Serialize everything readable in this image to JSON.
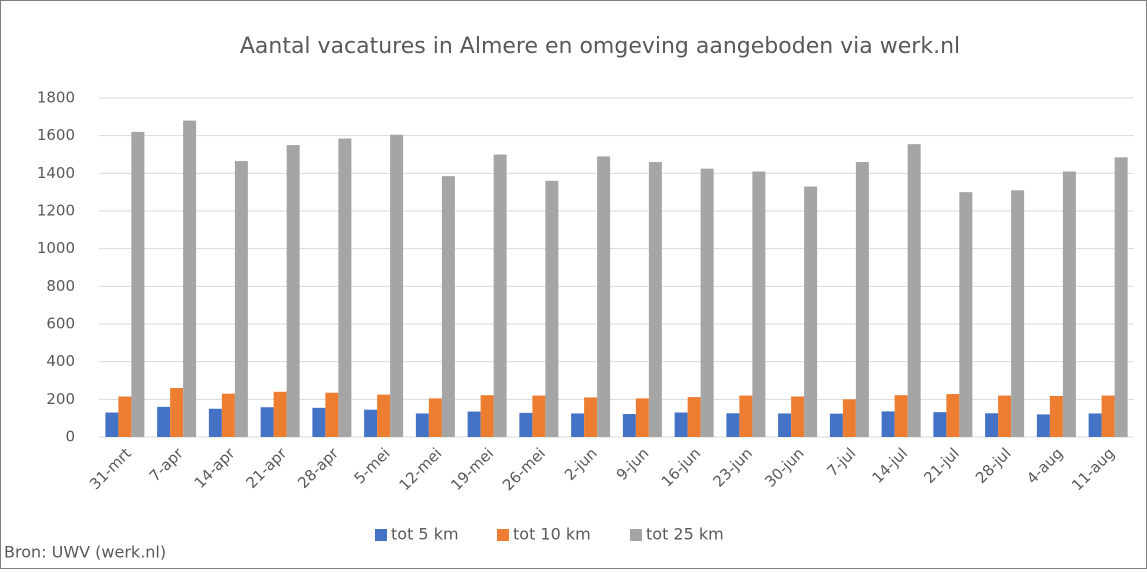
{
  "chart_data": {
    "type": "bar",
    "title": "Aantal vacatures in Almere en omgeving aangeboden via werk.nl",
    "categories": [
      "31-mrt",
      "7-apr",
      "14-apr",
      "21-apr",
      "28-apr",
      "5-mei",
      "12-mei",
      "19-mei",
      "26-mei",
      "2-jun",
      "9-jun",
      "16-jun",
      "23-jun",
      "30-jun",
      "7-jul",
      "14-jul",
      "21-jul",
      "28-jul",
      "4-aug",
      "11-aug"
    ],
    "series": [
      {
        "name": "tot 5 km",
        "color": "#4472c4",
        "values": [
          130,
          160,
          150,
          158,
          155,
          145,
          125,
          135,
          128,
          125,
          122,
          130,
          126,
          125,
          124,
          136,
          132,
          126,
          120,
          125
        ]
      },
      {
        "name": "tot 10 km",
        "color": "#ed7d31",
        "values": [
          215,
          260,
          230,
          240,
          235,
          225,
          205,
          222,
          220,
          210,
          205,
          212,
          220,
          215,
          200,
          222,
          228,
          220,
          218,
          220
        ]
      },
      {
        "name": "tot 25 km",
        "color": "#a5a5a5",
        "values": [
          1620,
          1680,
          1465,
          1550,
          1585,
          1605,
          1385,
          1500,
          1360,
          1490,
          1460,
          1425,
          1410,
          1330,
          1460,
          1555,
          1300,
          1310,
          1410,
          1485
        ]
      }
    ],
    "ylim": [
      0,
      1800
    ],
    "yticks": [
      0,
      200,
      400,
      600,
      800,
      1000,
      1200,
      1400,
      1600,
      1800
    ],
    "grid": true,
    "legend": "bottom",
    "source": "Bron: UWV (werk.nl)"
  }
}
